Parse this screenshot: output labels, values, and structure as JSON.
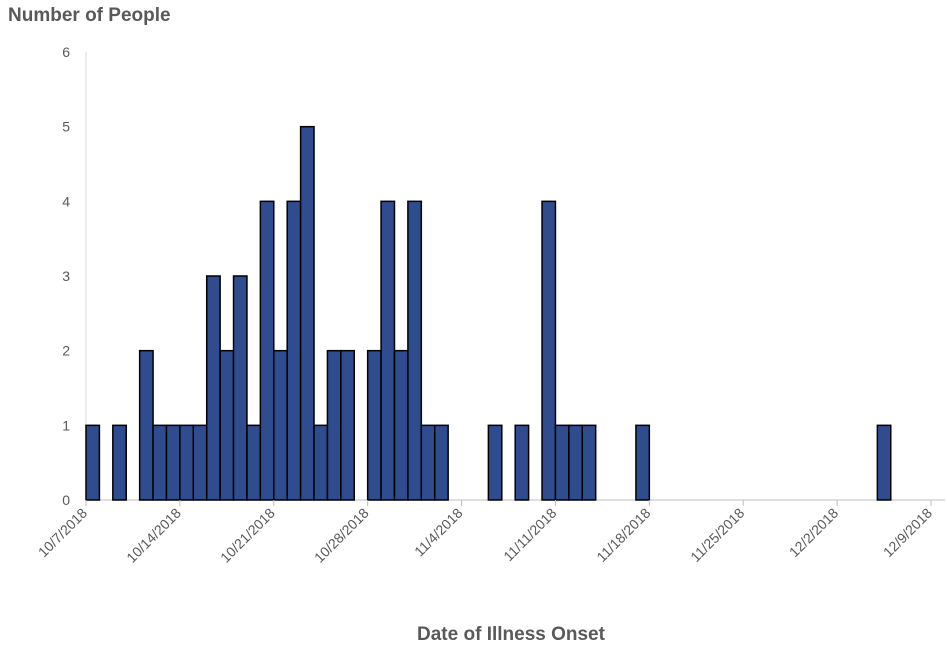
{
  "chart_data": {
    "type": "bar",
    "title": "",
    "ylabel": "Number of People",
    "xlabel": "Date of Illness Onset",
    "ylim": [
      0,
      6
    ],
    "yticks": [
      0,
      1,
      2,
      3,
      4,
      5,
      6
    ],
    "xlim": [
      "10/7/2018",
      "12/9/2018"
    ],
    "xtick_labels": [
      "10/7/2018",
      "10/14/2018",
      "10/21/2018",
      "10/28/2018",
      "11/4/2018",
      "11/11/2018",
      "11/18/2018",
      "11/25/2018",
      "12/2/2018",
      "12/9/2018"
    ],
    "grid": false,
    "bar_color": "#2e4c8e",
    "bar_edge_color": "#000000",
    "series": [
      {
        "points": [
          {
            "date": "10/7/2018",
            "value": 1
          },
          {
            "date": "10/9/2018",
            "value": 1
          },
          {
            "date": "10/11/2018",
            "value": 2
          },
          {
            "date": "10/12/2018",
            "value": 1
          },
          {
            "date": "10/13/2018",
            "value": 1
          },
          {
            "date": "10/14/2018",
            "value": 1
          },
          {
            "date": "10/15/2018",
            "value": 1
          },
          {
            "date": "10/16/2018",
            "value": 3
          },
          {
            "date": "10/17/2018",
            "value": 2
          },
          {
            "date": "10/18/2018",
            "value": 3
          },
          {
            "date": "10/19/2018",
            "value": 1
          },
          {
            "date": "10/20/2018",
            "value": 4
          },
          {
            "date": "10/21/2018",
            "value": 2
          },
          {
            "date": "10/22/2018",
            "value": 4
          },
          {
            "date": "10/23/2018",
            "value": 5
          },
          {
            "date": "10/24/2018",
            "value": 1
          },
          {
            "date": "10/25/2018",
            "value": 2
          },
          {
            "date": "10/26/2018",
            "value": 2
          },
          {
            "date": "10/28/2018",
            "value": 2
          },
          {
            "date": "10/29/2018",
            "value": 4
          },
          {
            "date": "10/30/2018",
            "value": 2
          },
          {
            "date": "10/31/2018",
            "value": 4
          },
          {
            "date": "11/1/2018",
            "value": 1
          },
          {
            "date": "11/2/2018",
            "value": 1
          },
          {
            "date": "11/6/2018",
            "value": 1
          },
          {
            "date": "11/8/2018",
            "value": 1
          },
          {
            "date": "11/10/2018",
            "value": 4
          },
          {
            "date": "11/11/2018",
            "value": 1
          },
          {
            "date": "11/12/2018",
            "value": 1
          },
          {
            "date": "11/13/2018",
            "value": 1
          },
          {
            "date": "11/17/2018",
            "value": 1
          },
          {
            "date": "12/5/2018",
            "value": 1
          }
        ]
      }
    ]
  }
}
